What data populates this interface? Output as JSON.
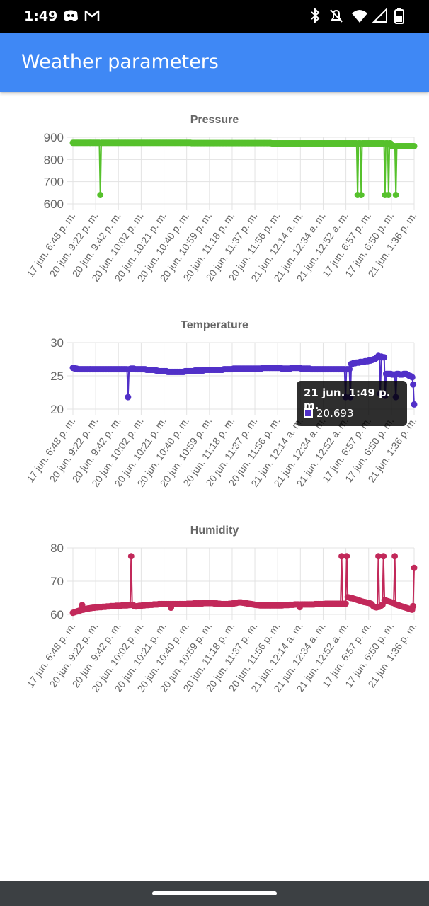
{
  "status_bar": {
    "time": "1:49",
    "icons": [
      "discord-icon",
      "gmail-icon",
      "bluetooth-icon",
      "mute-icon",
      "wifi-icon",
      "signal-icon",
      "battery-icon"
    ]
  },
  "app_bar": {
    "title": "Weather parameters"
  },
  "x_labels": [
    "17 jun. 6:48 p. m.",
    "20 jun. 9:22 p. m.",
    "20 jun. 9:42 p. m.",
    "20 jun. 10:02 p. m.",
    "20 jun. 10:21 p. m.",
    "20 jun. 10:40 p. m.",
    "20 jun. 10:59 p. m.",
    "20 jun. 11:18 p. m.",
    "20 jun. 11:37 p. m.",
    "20 jun. 11:56 p. m.",
    "21 jun. 12:14 a. m.",
    "21 jun. 12:34 a. m.",
    "21 jun. 12:52 a. m.",
    "17 jun. 6:57 p. m.",
    "17 jun. 6:50 p. m.",
    "21 jun. 1:36 p. m."
  ],
  "tooltip": {
    "title": "21 jun. 1:49 p. m.",
    "value": "20.693",
    "color": "#5130c8"
  },
  "chart_data": [
    {
      "type": "line",
      "title": "Pressure",
      "ylim": [
        600,
        900
      ],
      "yticks": [
        900,
        800,
        700,
        600
      ],
      "color": "#56c12c",
      "values": [
        875,
        875,
        875,
        875,
        875,
        875,
        875,
        875,
        875,
        875,
        875,
        875,
        875,
        875,
        875,
        875,
        875,
        875,
        875,
        875,
        875,
        875,
        875,
        875,
        875,
        875,
        875,
        875,
        875,
        875,
        640,
        875,
        875,
        875,
        875,
        875,
        875,
        875,
        875,
        875,
        875,
        875,
        875,
        875,
        875,
        875,
        875,
        875,
        875,
        875,
        875,
        875,
        875,
        875,
        875,
        875,
        875,
        875,
        875,
        875,
        875,
        875,
        875,
        875,
        875,
        875,
        875,
        875,
        875,
        875,
        875,
        875,
        875,
        875,
        875,
        875,
        875,
        875,
        875,
        875,
        875,
        875,
        875,
        875,
        875,
        875,
        875,
        875,
        875,
        875,
        875,
        875,
        875,
        875,
        875,
        875,
        875,
        875,
        875,
        875,
        875,
        875,
        875,
        875,
        875,
        875,
        875,
        875,
        875,
        875,
        875,
        875,
        875,
        875,
        875,
        875,
        875,
        875,
        875,
        875,
        875,
        875,
        875,
        875,
        875,
        875,
        875,
        875,
        875,
        875,
        874,
        874,
        874,
        874,
        874,
        874,
        874,
        874,
        874,
        874,
        874,
        874,
        874,
        874,
        874,
        874,
        874,
        874,
        874,
        874,
        874,
        874,
        874,
        874,
        874,
        874,
        874,
        874,
        874,
        874,
        874,
        874,
        874,
        874,
        874,
        874,
        874,
        874,
        874,
        874,
        874,
        874,
        874,
        874,
        874,
        874,
        874,
        874,
        874,
        874,
        874,
        874,
        874,
        874,
        874,
        874,
        874,
        874,
        874,
        874,
        874,
        874,
        874,
        874,
        874,
        874,
        874,
        874,
        874,
        874,
        874,
        874,
        874,
        874,
        874,
        874,
        874,
        874,
        874,
        874,
        874,
        874,
        874,
        874,
        874,
        874,
        874,
        874,
        873,
        873,
        873,
        873,
        873,
        873,
        873,
        873,
        873,
        873,
        873,
        873,
        873,
        873,
        873,
        873,
        873,
        873,
        873,
        873,
        873,
        873,
        873,
        873,
        873,
        873,
        873,
        873,
        873,
        873,
        873,
        873,
        873,
        873,
        873,
        873,
        873,
        873,
        873,
        873,
        873,
        873,
        873,
        873,
        873,
        873,
        873,
        873,
        873,
        873,
        873,
        873,
        873,
        873,
        873,
        873,
        873,
        873,
        873,
        873,
        873,
        873,
        873,
        873,
        873,
        873,
        873,
        873,
        873,
        873,
        873,
        873,
        873,
        873,
        873,
        873,
        873,
        873,
        873,
        873,
        873,
        873,
        873,
        873,
        873,
        873,
        873,
        873,
        873,
        873,
        873,
        873,
        873,
        873,
        640,
        873,
        873,
        873,
        640,
        873,
        873,
        873,
        873,
        873,
        873,
        873,
        873,
        873,
        873,
        873,
        873,
        873,
        873,
        873,
        873,
        873,
        873,
        873,
        873,
        873,
        873,
        873,
        873,
        873,
        640,
        873,
        873,
        873,
        640,
        873,
        873,
        860,
        860,
        860,
        860,
        860,
        640,
        860,
        860,
        860,
        860,
        860,
        860,
        860,
        860,
        860,
        860,
        860,
        860,
        860,
        860,
        860,
        860,
        860,
        860,
        860,
        860
      ]
    },
    {
      "type": "line",
      "title": "Temperature",
      "ylim": [
        20,
        30
      ],
      "yticks": [
        30,
        25,
        20
      ],
      "color": "#5130c8",
      "values": [
        26.2,
        26.2,
        26.1,
        26.1,
        26.1,
        26.0,
        26.0,
        26.0,
        26.0,
        26.0,
        26.0,
        26.0,
        26.0,
        26.0,
        26.0,
        26.0,
        26.0,
        26.0,
        26.0,
        26.0,
        26.0,
        26.0,
        26.0,
        26.0,
        26.0,
        26.0,
        26.0,
        26.0,
        26.0,
        26.0,
        26.0,
        26.0,
        26.0,
        26.0,
        26.0,
        26.0,
        26.0,
        26.0,
        26.0,
        26.0,
        26.0,
        26.0,
        26.0,
        26.0,
        26.0,
        26.0,
        26.0,
        26.0,
        26.0,
        26.0,
        26.0,
        26.0,
        26.0,
        26.0,
        26.0,
        26.0,
        26.0,
        21.8,
        26.0,
        26.0,
        26.1,
        26.1,
        26.1,
        26.1,
        26.0,
        26.0,
        26.0,
        26.0,
        26.0,
        26.0,
        26.0,
        26.0,
        26.0,
        26.0,
        26.0,
        26.0,
        25.9,
        25.9,
        25.9,
        25.9,
        25.9,
        25.9,
        25.9,
        25.9,
        25.9,
        25.9,
        25.8,
        25.8,
        25.7,
        25.7,
        25.7,
        25.7,
        25.7,
        25.7,
        25.7,
        25.7,
        25.7,
        25.7,
        25.6,
        25.6,
        25.6,
        25.6,
        25.6,
        25.6,
        25.6,
        25.6,
        25.6,
        25.6,
        25.6,
        25.6,
        25.6,
        25.6,
        25.6,
        25.6,
        25.6,
        25.6,
        25.7,
        25.7,
        25.7,
        25.7,
        25.7,
        25.7,
        25.7,
        25.7,
        25.7,
        25.7,
        25.8,
        25.8,
        25.8,
        25.8,
        25.8,
        25.8,
        25.8,
        25.8,
        25.8,
        25.8,
        25.9,
        25.9,
        25.9,
        25.9,
        25.9,
        25.9,
        25.9,
        25.9,
        25.9,
        25.9,
        25.9,
        25.9,
        25.9,
        25.9,
        25.9,
        25.9,
        25.9,
        25.9,
        25.9,
        25.9,
        26.0,
        26.0,
        26.0,
        26.0,
        26.0,
        26.0,
        26.0,
        26.0,
        26.0,
        26.0,
        26.1,
        26.1,
        26.1,
        26.1,
        26.1,
        26.1,
        26.1,
        26.1,
        26.1,
        26.1,
        26.1,
        26.1,
        26.1,
        26.1,
        26.1,
        26.1,
        26.1,
        26.1,
        26.1,
        26.1,
        26.1,
        26.1,
        26.1,
        26.1,
        26.1,
        26.1,
        26.1,
        26.1,
        26.1,
        26.1,
        26.2,
        26.2,
        26.2,
        26.2,
        26.2,
        26.2,
        26.2,
        26.2,
        26.2,
        26.2,
        26.2,
        26.2,
        26.2,
        26.2,
        26.2,
        26.2,
        26.2,
        26.2,
        26.2,
        26.2,
        26.1,
        26.1,
        26.1,
        26.1,
        26.1,
        26.1,
        26.1,
        26.1,
        26.1,
        26.1,
        26.2,
        26.2,
        26.2,
        26.2,
        26.2,
        26.2,
        26.2,
        26.2,
        26.2,
        26.2,
        26.1,
        26.1,
        26.1,
        26.1,
        26.1,
        26.1,
        26.1,
        26.1,
        26.1,
        26.1,
        26.0,
        26.0,
        26.0,
        26.0,
        26.0,
        26.0,
        26.0,
        26.0,
        26.0,
        26.0,
        26.0,
        26.0,
        26.0,
        26.0,
        26.0,
        26.0,
        26.0,
        26.0,
        26.0,
        26.0,
        26.0,
        26.0,
        26.0,
        26.0,
        26.0,
        26.0,
        26.0,
        26.0,
        26.0,
        26.0,
        26.0,
        26.0,
        26.0,
        26.0,
        26.0,
        26.0,
        21.8,
        26.0,
        26.0,
        26.0,
        26.0,
        21.8,
        26.8,
        26.8,
        26.9,
        26.9,
        26.9,
        27.0,
        27.0,
        27.0,
        27.0,
        27.1,
        27.1,
        27.1,
        27.1,
        27.1,
        27.2,
        27.2,
        27.2,
        27.2,
        27.3,
        27.3,
        27.3,
        27.4,
        27.4,
        27.5,
        27.5,
        27.6,
        27.7,
        27.8,
        28.0,
        27.9,
        22.3,
        27.9,
        27.8,
        27.8,
        27.8,
        22.0,
        25.3,
        25.3,
        25.3,
        25.3,
        25.3,
        25.3,
        25.2,
        25.2,
        25.2,
        25.2,
        21.8,
        25.3,
        25.3,
        25.3,
        25.2,
        25.2,
        25.2,
        25.2,
        25.3,
        25.3,
        25.3,
        25.3,
        25.2,
        25.1,
        25.0,
        25.0,
        24.9,
        24.8,
        23.7,
        20.7
      ]
    },
    {
      "type": "line",
      "title": "Humidity",
      "ylim": [
        60,
        80
      ],
      "yticks": [
        80,
        70,
        60
      ],
      "color": "#c2295a",
      "values": [
        60.5,
        60.6,
        60.7,
        60.8,
        60.9,
        61.0,
        61.1,
        61.2,
        61.3,
        62.8,
        61.4,
        61.5,
        61.6,
        61.7,
        61.7,
        61.8,
        61.8,
        61.9,
        61.9,
        62.0,
        62.0,
        62.0,
        62.1,
        62.1,
        62.1,
        62.2,
        62.2,
        62.2,
        62.2,
        62.3,
        62.3,
        62.3,
        62.3,
        62.4,
        62.4,
        62.4,
        62.4,
        62.5,
        62.5,
        62.5,
        62.5,
        62.5,
        62.6,
        62.6,
        62.6,
        62.6,
        62.6,
        62.6,
        62.7,
        62.7,
        62.7,
        62.7,
        62.7,
        62.7,
        62.8,
        62.8,
        62.8,
        77.5,
        62.8,
        62.8,
        62.5,
        62.4,
        62.4,
        62.5,
        62.5,
        62.6,
        62.6,
        62.6,
        62.7,
        62.7,
        62.7,
        62.8,
        62.8,
        62.8,
        62.8,
        62.9,
        62.9,
        62.9,
        62.9,
        63.0,
        63.0,
        63.0,
        63.0,
        63.0,
        63.1,
        63.1,
        63.1,
        63.1,
        63.1,
        63.1,
        63.1,
        63.1,
        63.1,
        63.1,
        63.1,
        63.1,
        62.0,
        63.1,
        63.1,
        63.1,
        63.1,
        63.1,
        63.1,
        63.1,
        63.1,
        63.1,
        63.1,
        63.1,
        63.1,
        63.1,
        63.1,
        63.1,
        63.2,
        63.2,
        63.2,
        63.2,
        63.2,
        63.2,
        63.3,
        63.3,
        63.3,
        63.3,
        63.3,
        63.3,
        63.3,
        63.3,
        63.3,
        63.3,
        63.4,
        63.4,
        63.4,
        63.4,
        63.4,
        63.4,
        63.4,
        63.4,
        63.4,
        63.4,
        63.3,
        63.3,
        63.3,
        63.3,
        63.2,
        63.2,
        63.2,
        63.1,
        63.1,
        63.1,
        63.1,
        63.1,
        63.1,
        63.1,
        63.1,
        63.2,
        63.2,
        63.2,
        63.3,
        63.3,
        63.3,
        63.4,
        63.4,
        63.5,
        63.6,
        63.6,
        63.6,
        63.6,
        63.5,
        63.5,
        63.4,
        63.4,
        63.3,
        63.3,
        63.2,
        63.2,
        63.1,
        63.1,
        63.0,
        63.0,
        62.9,
        62.9,
        62.8,
        62.8,
        62.8,
        62.7,
        62.7,
        62.7,
        62.7,
        62.7,
        62.7,
        62.7,
        62.7,
        62.7,
        62.7,
        62.7,
        62.7,
        62.7,
        62.7,
        62.7,
        62.7,
        62.7,
        62.7,
        62.7,
        62.7,
        62.7,
        62.7,
        62.7,
        62.8,
        62.8,
        62.8,
        62.8,
        62.8,
        62.8,
        62.9,
        62.9,
        62.9,
        62.9,
        62.9,
        63.0,
        63.0,
        63.0,
        63.0,
        63.0,
        62.2,
        63.0,
        63.0,
        63.0,
        63.0,
        63.0,
        63.0,
        63.0,
        63.0,
        63.0,
        63.0,
        63.0,
        63.0,
        63.0,
        63.0,
        63.1,
        63.1,
        63.1,
        63.1,
        63.1,
        63.1,
        63.1,
        63.1,
        63.1,
        63.1,
        63.2,
        63.2,
        63.2,
        63.2,
        63.2,
        63.2,
        63.2,
        63.2,
        63.2,
        63.2,
        63.2,
        63.2,
        63.2,
        63.2,
        63.2,
        63.2,
        77.5,
        63.2,
        63.2,
        63.2,
        63.2,
        77.5,
        65.2,
        65.1,
        65.0,
        64.9,
        64.9,
        64.8,
        64.7,
        64.6,
        64.5,
        64.4,
        64.3,
        64.2,
        64.1,
        64.0,
        63.9,
        63.8,
        63.7,
        63.7,
        63.6,
        63.5,
        63.5,
        63.4,
        63.3,
        63.2,
        62.8,
        62.5,
        62.3,
        62.2,
        62.1,
        62.2,
        77.5,
        62.3,
        62.5,
        62.7,
        62.9,
        77.5,
        64.3,
        64.2,
        64.1,
        64.0,
        63.9,
        63.8,
        63.7,
        63.6,
        63.5,
        63.4,
        77.5,
        63.0,
        62.9,
        62.8,
        62.7,
        62.6,
        62.5,
        62.4,
        62.3,
        62.2,
        62.1,
        62.0,
        61.9,
        61.8,
        61.7,
        61.6,
        61.5,
        61.4,
        62.5,
        74.0
      ]
    }
  ]
}
